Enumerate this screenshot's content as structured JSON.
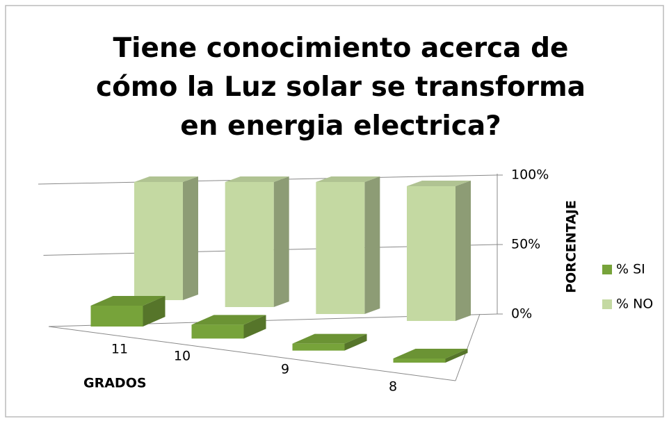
{
  "chart_data": {
    "type": "bar3d",
    "title": "Tiene conocimiento acerca de cómo la Luz solar se transforma en energia electrica?",
    "categories": [
      "11",
      "10",
      "9",
      "8"
    ],
    "series": [
      {
        "name": "% SI",
        "color": "#77a33a",
        "values": [
          15,
          10,
          5,
          3
        ]
      },
      {
        "name": "% NO",
        "color": "#c4d9a2",
        "values": [
          85,
          90,
          95,
          97
        ]
      }
    ],
    "ylim": [
      0,
      100
    ],
    "yticks": [
      {
        "value": 0,
        "label": "0%"
      },
      {
        "value": 50,
        "label": "50%"
      },
      {
        "value": 100,
        "label": "100%"
      }
    ],
    "ylabel": "PORCENTAJE",
    "xlabel": "GRADOS",
    "grid": true,
    "legend": "right"
  }
}
